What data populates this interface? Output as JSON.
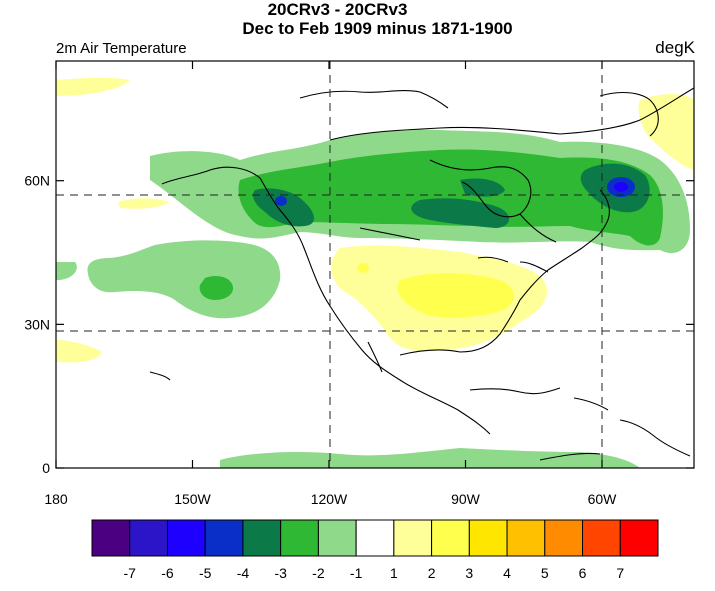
{
  "title_line1": "20CRv3 - 20CRv3",
  "title_line2": "Dec to Feb 1909 minus 1871-1900",
  "variable_label": "2m Air Temperature",
  "unit_label": "degK",
  "map": {
    "lon_range": [
      180,
      300
    ],
    "lat_range": [
      0,
      85
    ],
    "x_ticks": [
      {
        "lon": 180,
        "label": "180"
      },
      {
        "lon": 210,
        "label": "150W"
      },
      {
        "lon": 240,
        "label": "120W"
      },
      {
        "lon": 270,
        "label": "90W"
      },
      {
        "lon": 300,
        "label": "60W"
      }
    ],
    "y_ticks": [
      {
        "lat": 0,
        "label": "0"
      },
      {
        "lat": 30,
        "label": "30N"
      },
      {
        "lat": 60,
        "label": "60N"
      }
    ],
    "grid": "dashed at 30N, 60N, 120W, 60W"
  },
  "colorbar": {
    "colors": [
      "#4b0082",
      "#2c14c8",
      "#1e00ff",
      "#0a2fc8",
      "#0b7a48",
      "#2fb833",
      "#8fd98a",
      "#ffffff",
      "#ffff99",
      "#ffff4d",
      "#ffe600",
      "#ffc000",
      "#ff8c00",
      "#ff4500",
      "#ff0000"
    ],
    "labels": [
      "-7",
      "-6",
      "-5",
      "-4",
      "-3",
      "-2",
      "-1",
      "1",
      "2",
      "3",
      "4",
      "5",
      "6",
      "7"
    ]
  }
}
